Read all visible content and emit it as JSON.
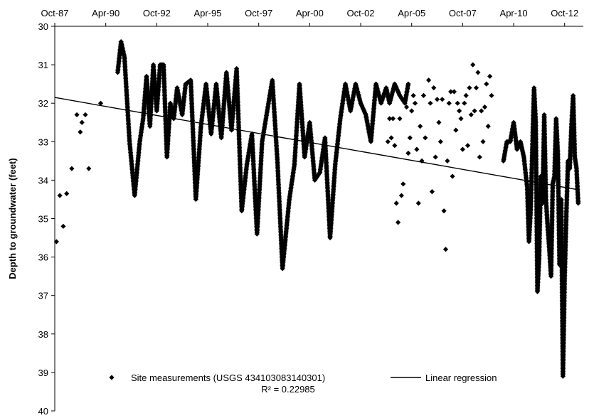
{
  "chart_data": {
    "type": "scatter",
    "ylabel": "Depth to groundwater (feet)",
    "xlabel": "",
    "x_axis_position": "top",
    "y_reversed": true,
    "ylim": [
      30,
      40
    ],
    "y_ticks": [
      30,
      31,
      32,
      33,
      34,
      35,
      36,
      37,
      38,
      39,
      40
    ],
    "y_tick_labels": [
      "30",
      "31",
      "32",
      "33",
      "34",
      "35",
      "36",
      "37",
      "38",
      "39",
      "40"
    ],
    "xlim": [
      "1987-10",
      "2013-09"
    ],
    "x_ticks": [
      "1987-10",
      "1990-04",
      "1992-10",
      "1995-04",
      "1997-10",
      "2000-04",
      "2002-10",
      "2005-04",
      "2007-10",
      "2010-04",
      "2012-10"
    ],
    "x_tick_labels": [
      "Oct-87",
      "Apr-90",
      "Oct-92",
      "Apr-95",
      "Oct-97",
      "Apr-00",
      "Oct-02",
      "Apr-05",
      "Oct-07",
      "Apr-10",
      "Oct-12"
    ],
    "grid": false,
    "legend_position": "bottom",
    "legend": [
      {
        "label": "Site measurements (USGS 434103083140301)",
        "marker": "diamond"
      },
      {
        "label": "Linear regression",
        "marker": "line"
      }
    ],
    "annotation": "R² = 0.22985",
    "series": [
      {
        "name": "Site measurements (USGS 434103083140301)",
        "kind": "points",
        "x": [
          "1987-11",
          "1988-01",
          "1988-03",
          "1988-05",
          "1988-08",
          "1988-11",
          "1989-01",
          "1989-02",
          "1989-04",
          "1989-06",
          "1990-01"
        ],
        "y": [
          35.6,
          34.4,
          35.2,
          34.35,
          33.7,
          32.3,
          32.75,
          32.5,
          32.3,
          33.7,
          32.0
        ]
      },
      {
        "name": "Site measurements (USGS 434103083140301)",
        "kind": "dense",
        "x": [
          "1990-11",
          "1991-01",
          "1991-03",
          "1991-06",
          "1991-09",
          "1991-12",
          "1992-02",
          "1992-04",
          "1992-06",
          "1992-08",
          "1992-10",
          "1992-12",
          "1993-02",
          "1993-04",
          "1993-06",
          "1993-08",
          "1993-10",
          "1994-01",
          "1994-03",
          "1994-06",
          "1994-09",
          "1994-12",
          "1995-03",
          "1995-06",
          "1995-09",
          "1995-12",
          "1996-03",
          "1996-06",
          "1996-09",
          "1996-12",
          "1997-03",
          "1997-06",
          "1997-09",
          "1997-12",
          "1998-03",
          "1998-06",
          "1998-09",
          "1998-12",
          "1999-04",
          "1999-07",
          "1999-10",
          "2000-01",
          "2000-04",
          "2000-07",
          "2000-10",
          "2001-01",
          "2001-04",
          "2001-07",
          "2001-10",
          "2002-01",
          "2002-04",
          "2002-07",
          "2002-10",
          "2003-01",
          "2003-04",
          "2003-07",
          "2003-10",
          "2004-01",
          "2004-03",
          "2004-06",
          "2004-09",
          "2004-12",
          "2005-02"
        ],
        "y": [
          31.2,
          30.4,
          30.8,
          33.0,
          34.4,
          33.0,
          32.4,
          31.3,
          32.6,
          31.0,
          32.2,
          31.0,
          31.0,
          33.4,
          32.0,
          32.4,
          31.6,
          32.3,
          31.5,
          31.4,
          34.5,
          32.6,
          31.5,
          32.8,
          31.5,
          32.9,
          31.2,
          32.7,
          31.1,
          34.8,
          33.6,
          32.8,
          35.4,
          33.0,
          32.2,
          31.4,
          33.5,
          36.3,
          34.5,
          33.6,
          31.5,
          33.4,
          32.5,
          34.0,
          33.8,
          32.9,
          35.5,
          33.6,
          32.4,
          31.5,
          32.2,
          31.5,
          32.0,
          32.3,
          33.0,
          31.5,
          32.0,
          31.6,
          32.0,
          31.5,
          31.8,
          32.0,
          31.5
        ]
      },
      {
        "name": "Site measurements (USGS 434103083140301)",
        "kind": "points",
        "x": [
          "2004-02",
          "2004-03",
          "2004-04",
          "2004-05",
          "2004-06",
          "2004-07",
          "2004-08",
          "2004-09",
          "2004-10",
          "2004-11",
          "2005-01",
          "2005-02",
          "2005-03",
          "2005-04",
          "2005-05",
          "2005-06",
          "2005-07",
          "2005-08",
          "2005-09",
          "2005-10",
          "2005-11",
          "2005-12",
          "2006-02",
          "2006-03",
          "2006-04",
          "2006-05",
          "2006-06",
          "2006-07",
          "2006-08",
          "2006-09",
          "2006-10",
          "2006-11",
          "2006-12",
          "2007-01",
          "2007-02",
          "2007-03",
          "2007-04",
          "2007-05",
          "2007-06",
          "2007-07",
          "2007-08",
          "2007-09",
          "2007-10",
          "2007-11",
          "2007-12",
          "2008-01",
          "2008-02",
          "2008-03",
          "2008-04",
          "2008-05",
          "2008-06",
          "2008-07",
          "2008-08",
          "2008-09",
          "2008-10",
          "2008-11",
          "2008-12",
          "2009-01",
          "2009-02",
          "2009-03"
        ],
        "y": [
          33.0,
          32.4,
          32.9,
          32.4,
          33.1,
          34.6,
          35.1,
          32.4,
          34.4,
          34.1,
          32.1,
          33.3,
          32.9,
          32.2,
          31.8,
          32.0,
          33.2,
          34.6,
          32.6,
          33.5,
          31.8,
          32.9,
          31.4,
          32.0,
          34.3,
          31.6,
          33.4,
          31.9,
          32.5,
          33.0,
          31.9,
          34.8,
          35.8,
          33.5,
          32.0,
          31.7,
          33.9,
          31.7,
          32.7,
          32.0,
          32.2,
          32.4,
          33.2,
          32.0,
          31.8,
          33.1,
          31.6,
          32.3,
          31.0,
          32.2,
          31.6,
          31.2,
          33.4,
          32.2,
          33.0,
          32.1,
          31.5,
          32.6,
          31.3,
          31.8
        ]
      },
      {
        "name": "Site measurements (USGS 434103083140301)",
        "kind": "dense",
        "x": [
          "2009-10",
          "2009-12",
          "2010-02",
          "2010-04",
          "2010-06",
          "2010-08",
          "2010-10",
          "2010-12",
          "2011-01",
          "2011-02",
          "2011-03",
          "2011-04",
          "2011-05",
          "2011-06",
          "2011-07",
          "2011-08",
          "2011-09",
          "2011-10",
          "2011-11",
          "2011-12",
          "2012-01",
          "2012-02",
          "2012-03",
          "2012-04",
          "2012-05",
          "2012-06",
          "2012-07",
          "2012-08",
          "2012-09",
          "2012-10",
          "2012-11",
          "2012-12",
          "2013-01",
          "2013-02",
          "2013-03",
          "2013-04",
          "2013-05",
          "2013-06"
        ],
        "y": [
          33.5,
          33.0,
          33.0,
          32.5,
          33.2,
          33.0,
          33.4,
          34.2,
          35.6,
          34.8,
          33.2,
          31.6,
          32.5,
          36.9,
          36.0,
          33.9,
          34.6,
          32.3,
          34.5,
          35.2,
          35.8,
          36.5,
          34.1,
          33.9,
          32.4,
          33.3,
          36.2,
          34.5,
          39.1,
          36.6,
          34.9,
          33.5,
          33.7,
          32.6,
          31.8,
          33.4,
          33.7,
          34.6
        ]
      },
      {
        "name": "Linear regression",
        "kind": "line",
        "x": [
          "1987-10",
          "2013-06"
        ],
        "y": [
          31.85,
          34.25
        ]
      }
    ]
  }
}
